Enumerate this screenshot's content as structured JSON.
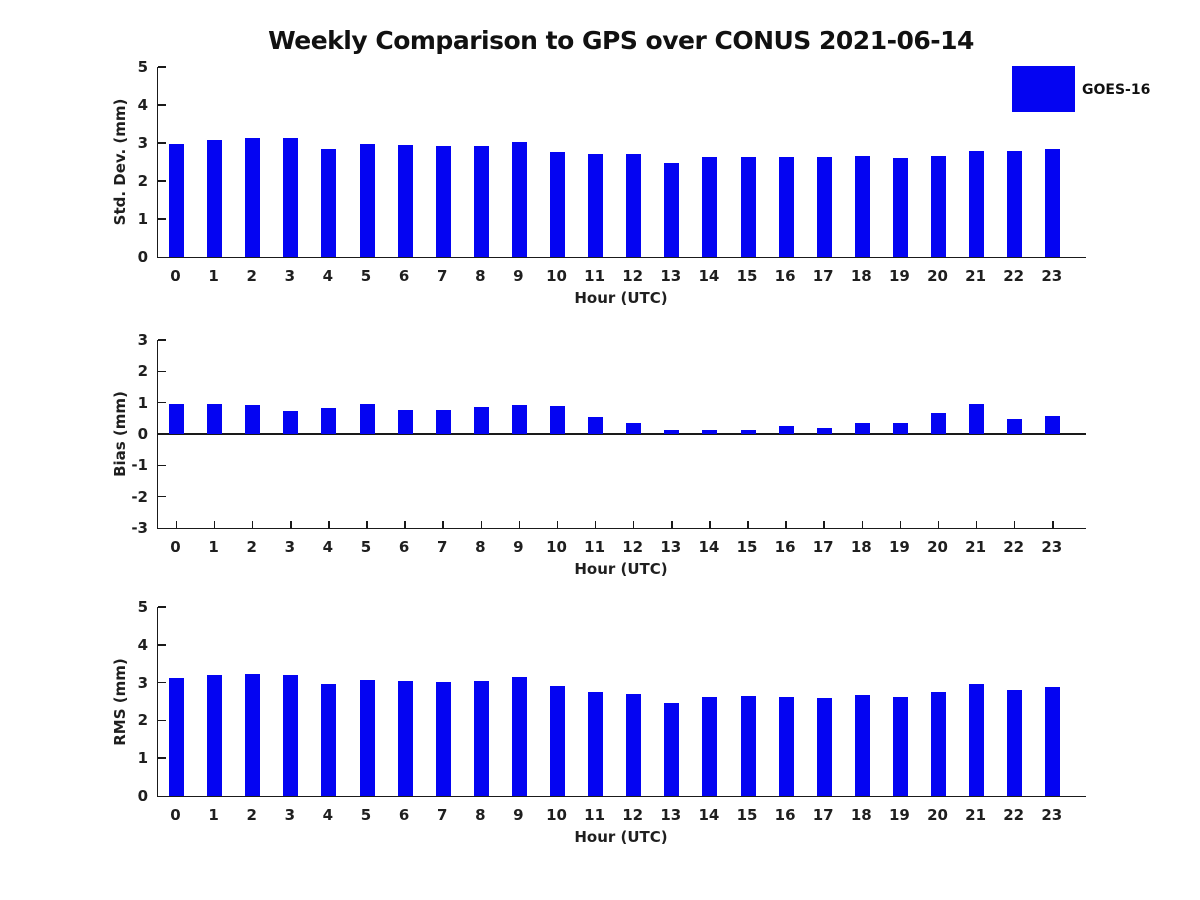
{
  "title": "Weekly Comparison to GPS over CONUS 2021-06-14",
  "legend": {
    "label": "GOES-16",
    "position": "top-right",
    "swatch_color": "#0404f2"
  },
  "colors": {
    "bar": "#0404f2",
    "axis": "#1a1a1a",
    "text": "#1f1f1f"
  },
  "chart_data": [
    {
      "type": "bar",
      "name": "std-dev",
      "ylabel": "Std. Dev. (mm)",
      "xlabel": "Hour (UTC)",
      "ylim": [
        0,
        5
      ],
      "yticks": [
        0,
        1,
        2,
        3,
        4,
        5
      ],
      "grid": false,
      "categories": [
        "0",
        "1",
        "2",
        "3",
        "4",
        "5",
        "6",
        "7",
        "8",
        "9",
        "10",
        "11",
        "12",
        "13",
        "14",
        "15",
        "16",
        "17",
        "18",
        "19",
        "20",
        "21",
        "22",
        "23"
      ],
      "series": [
        {
          "name": "GOES-16",
          "values": [
            2.98,
            3.07,
            3.12,
            3.12,
            2.85,
            2.97,
            2.96,
            2.93,
            2.93,
            3.02,
            2.76,
            2.72,
            2.7,
            2.48,
            2.62,
            2.63,
            2.62,
            2.62,
            2.66,
            2.6,
            2.66,
            2.8,
            2.78,
            2.85
          ]
        }
      ]
    },
    {
      "type": "bar",
      "name": "bias",
      "ylabel": "Bias (mm)",
      "xlabel": "Hour (UTC)",
      "ylim": [
        -3,
        3
      ],
      "yticks": [
        -3,
        -2,
        -1,
        0,
        1,
        2,
        3
      ],
      "grid": false,
      "zero_line": true,
      "categories": [
        "0",
        "1",
        "2",
        "3",
        "4",
        "5",
        "6",
        "7",
        "8",
        "9",
        "10",
        "11",
        "12",
        "13",
        "14",
        "15",
        "16",
        "17",
        "18",
        "19",
        "20",
        "21",
        "22",
        "23"
      ],
      "series": [
        {
          "name": "GOES-16",
          "values": [
            0.95,
            0.97,
            0.92,
            0.74,
            0.82,
            0.96,
            0.76,
            0.77,
            0.87,
            0.94,
            0.9,
            0.53,
            0.34,
            0.13,
            0.14,
            0.12,
            0.26,
            0.2,
            0.36,
            0.34,
            0.67,
            0.95,
            0.47,
            0.57
          ]
        }
      ]
    },
    {
      "type": "bar",
      "name": "rms",
      "ylabel": "RMS (mm)",
      "xlabel": "Hour (UTC)",
      "ylim": [
        0,
        5
      ],
      "yticks": [
        0,
        1,
        2,
        3,
        4,
        5
      ],
      "grid": false,
      "categories": [
        "0",
        "1",
        "2",
        "3",
        "4",
        "5",
        "6",
        "7",
        "8",
        "9",
        "10",
        "11",
        "12",
        "13",
        "14",
        "15",
        "16",
        "17",
        "18",
        "19",
        "20",
        "21",
        "22",
        "23"
      ],
      "series": [
        {
          "name": "GOES-16",
          "values": [
            3.13,
            3.2,
            3.23,
            3.21,
            2.96,
            3.08,
            3.04,
            3.01,
            3.04,
            3.14,
            2.91,
            2.76,
            2.7,
            2.47,
            2.62,
            2.64,
            2.62,
            2.59,
            2.67,
            2.61,
            2.74,
            2.95,
            2.8,
            2.88
          ]
        }
      ]
    }
  ]
}
